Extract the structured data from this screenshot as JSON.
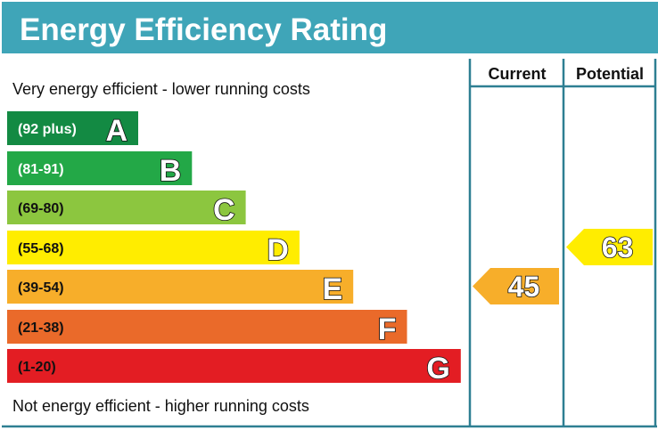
{
  "chart_data": {
    "type": "bar",
    "title": "Energy Efficiency Rating",
    "top_note": "Very energy efficient - lower running costs",
    "bottom_note": "Not energy efficient - higher running costs",
    "columns": [
      "Current",
      "Potential"
    ],
    "bands": [
      {
        "letter": "A",
        "range": "(92 plus)",
        "color": "#138a43",
        "text_color": "#ffffff"
      },
      {
        "letter": "B",
        "range": "(81-91)",
        "color": "#23a847",
        "text_color": "#ffffff"
      },
      {
        "letter": "C",
        "range": "(69-80)",
        "color": "#8cc63f",
        "text_color": "#111111"
      },
      {
        "letter": "D",
        "range": "(55-68)",
        "color": "#ffed00",
        "text_color": "#111111"
      },
      {
        "letter": "E",
        "range": "(39-54)",
        "color": "#f7ae2a",
        "text_color": "#111111"
      },
      {
        "letter": "F",
        "range": "(21-38)",
        "color": "#ea6a2a",
        "text_color": "#111111"
      },
      {
        "letter": "G",
        "range": "(1-20)",
        "color": "#e31d23",
        "text_color": "#111111"
      }
    ],
    "current": {
      "value": 45,
      "band": "E",
      "color": "#f7ae2a"
    },
    "potential": {
      "value": 63,
      "band": "D",
      "color": "#ffed00"
    },
    "accent_color": "#3fa5b8",
    "grid_color": "#2e7f92"
  }
}
